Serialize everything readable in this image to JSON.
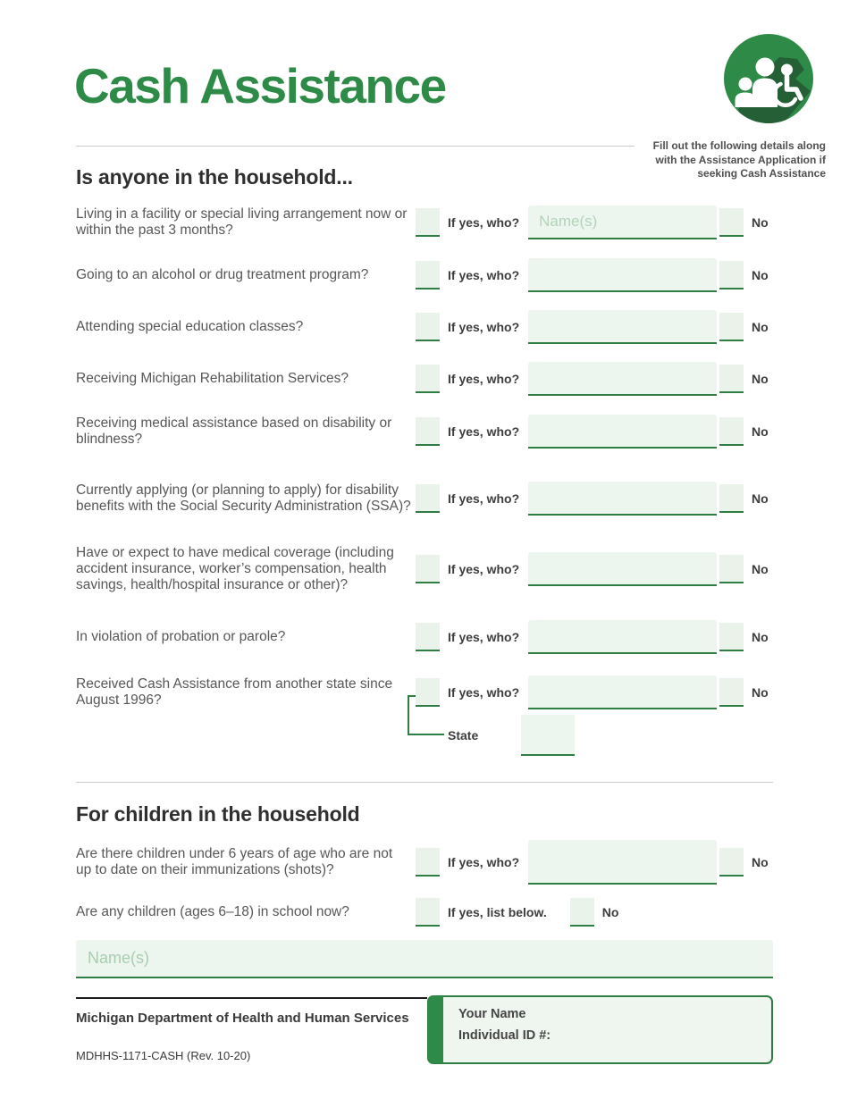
{
  "page": {
    "title": "Cash Assistance",
    "note": "Fill out the following details along with the Assistance Application if seeking Cash Assistance"
  },
  "colors": {
    "brand_green": "#2e8b47",
    "shadow_green": "#245f35",
    "field_bg": "#edf6ee",
    "field_border": "#2e7d43",
    "placeholder_green": "#b3d3b8"
  },
  "section_household": {
    "heading": "Is anyone in the household...",
    "yes_label": "If yes, who?",
    "no_label": "No",
    "questions": [
      {
        "text": "Living in a facility or special living arrangement now or within the past 3 months?",
        "placeholder": "Name(s)"
      },
      {
        "text": "Going to an alcohol or drug treatment program?"
      },
      {
        "text": "Attending special education classes?"
      },
      {
        "text": "Receiving Michigan Rehabilitation Services?"
      },
      {
        "text": "Receiving medical assistance based on disability or blindness?"
      },
      {
        "text": "Currently applying (or planning to apply) for disability benefits with the Social Security Administration (SSA)?"
      },
      {
        "text": "Have or expect to have medical coverage (including accident insurance, worker’s compensation, health savings, health/hospital insurance or other)?"
      },
      {
        "text": "In violation of probation or parole?"
      },
      {
        "text": "Received Cash Assistance from another state since August 1996?",
        "state_label": "State"
      }
    ]
  },
  "section_children": {
    "heading": "For children in the household",
    "rows": [
      {
        "text": "Are there children under 6 years of age who are not up to date on their immunizations (shots)?",
        "yes_label": "If yes, who?",
        "no_label": "No"
      },
      {
        "text": "Are any children (ages 6–18) in school now?",
        "yes_label": "If yes, list below.",
        "no_label": "No",
        "compact": true
      }
    ],
    "names_placeholder": "Name(s)"
  },
  "footer": {
    "agency": "Michigan Department of Health and Human Services",
    "form_number": "MDHHS-1171-CASH (Rev. 10-20)",
    "name_label": "Your Name",
    "id_label": "Individual ID #:"
  }
}
